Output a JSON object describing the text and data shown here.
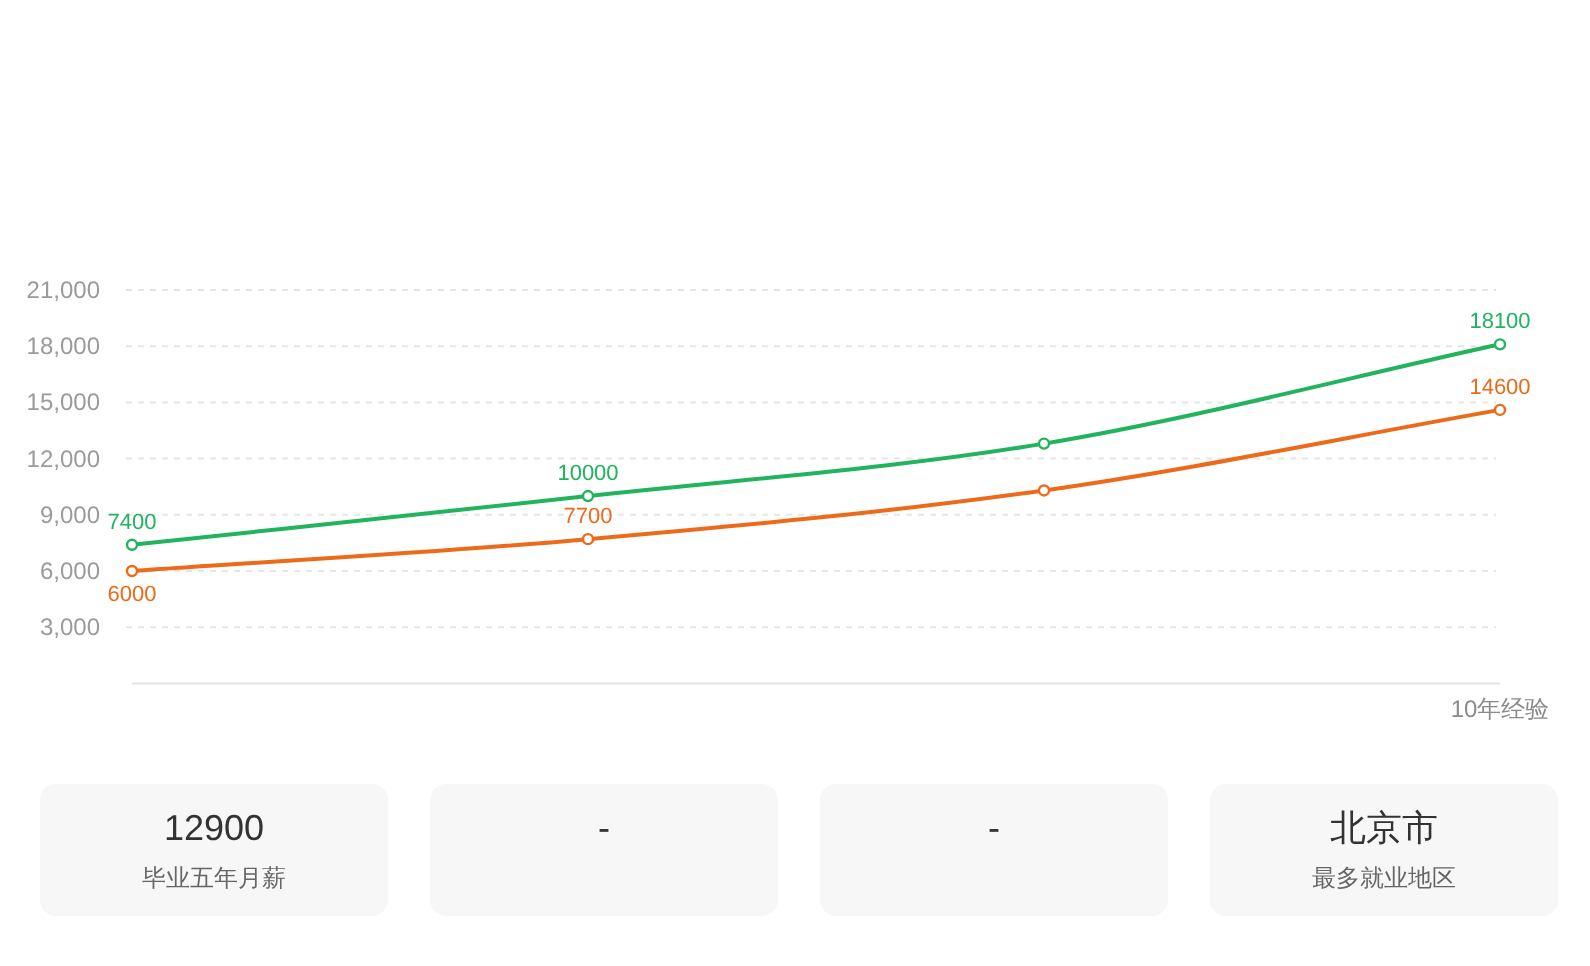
{
  "chart_data": [
    {
      "type": "line",
      "categories": [
        null,
        null,
        null,
        "10年经验"
      ],
      "series": [
        {
          "color": "#22b35e",
          "values": [
            7400,
            10000,
            12800,
            18100
          ],
          "value_labels": [
            "7400",
            "10000",
            null,
            "18100"
          ]
        },
        {
          "color": "#ec6b1a",
          "values": [
            6000,
            7700,
            10300,
            14600
          ],
          "value_labels": [
            "6000",
            "7700",
            null,
            "14600"
          ]
        }
      ],
      "ylim": [
        0,
        21000
      ],
      "yticks": [
        {
          "value": 3000,
          "label": "3,000"
        },
        {
          "value": 6000,
          "label": "6,000"
        },
        {
          "value": 9000,
          "label": "9,000"
        },
        {
          "value": 12000,
          "label": "12,000"
        },
        {
          "value": 15000,
          "label": "15,000"
        },
        {
          "value": 18000,
          "label": "18,000"
        },
        {
          "value": 21000,
          "label": "21,000"
        }
      ],
      "grid": "y",
      "marker": "circle",
      "line_style": "solid"
    },
    {
      "type": "other",
      "categories": [
        "毕业五年月薪",
        null,
        null,
        "最多就业地区"
      ],
      "value_labels": [
        "12900",
        "-",
        "-",
        "北京市"
      ]
    }
  ]
}
